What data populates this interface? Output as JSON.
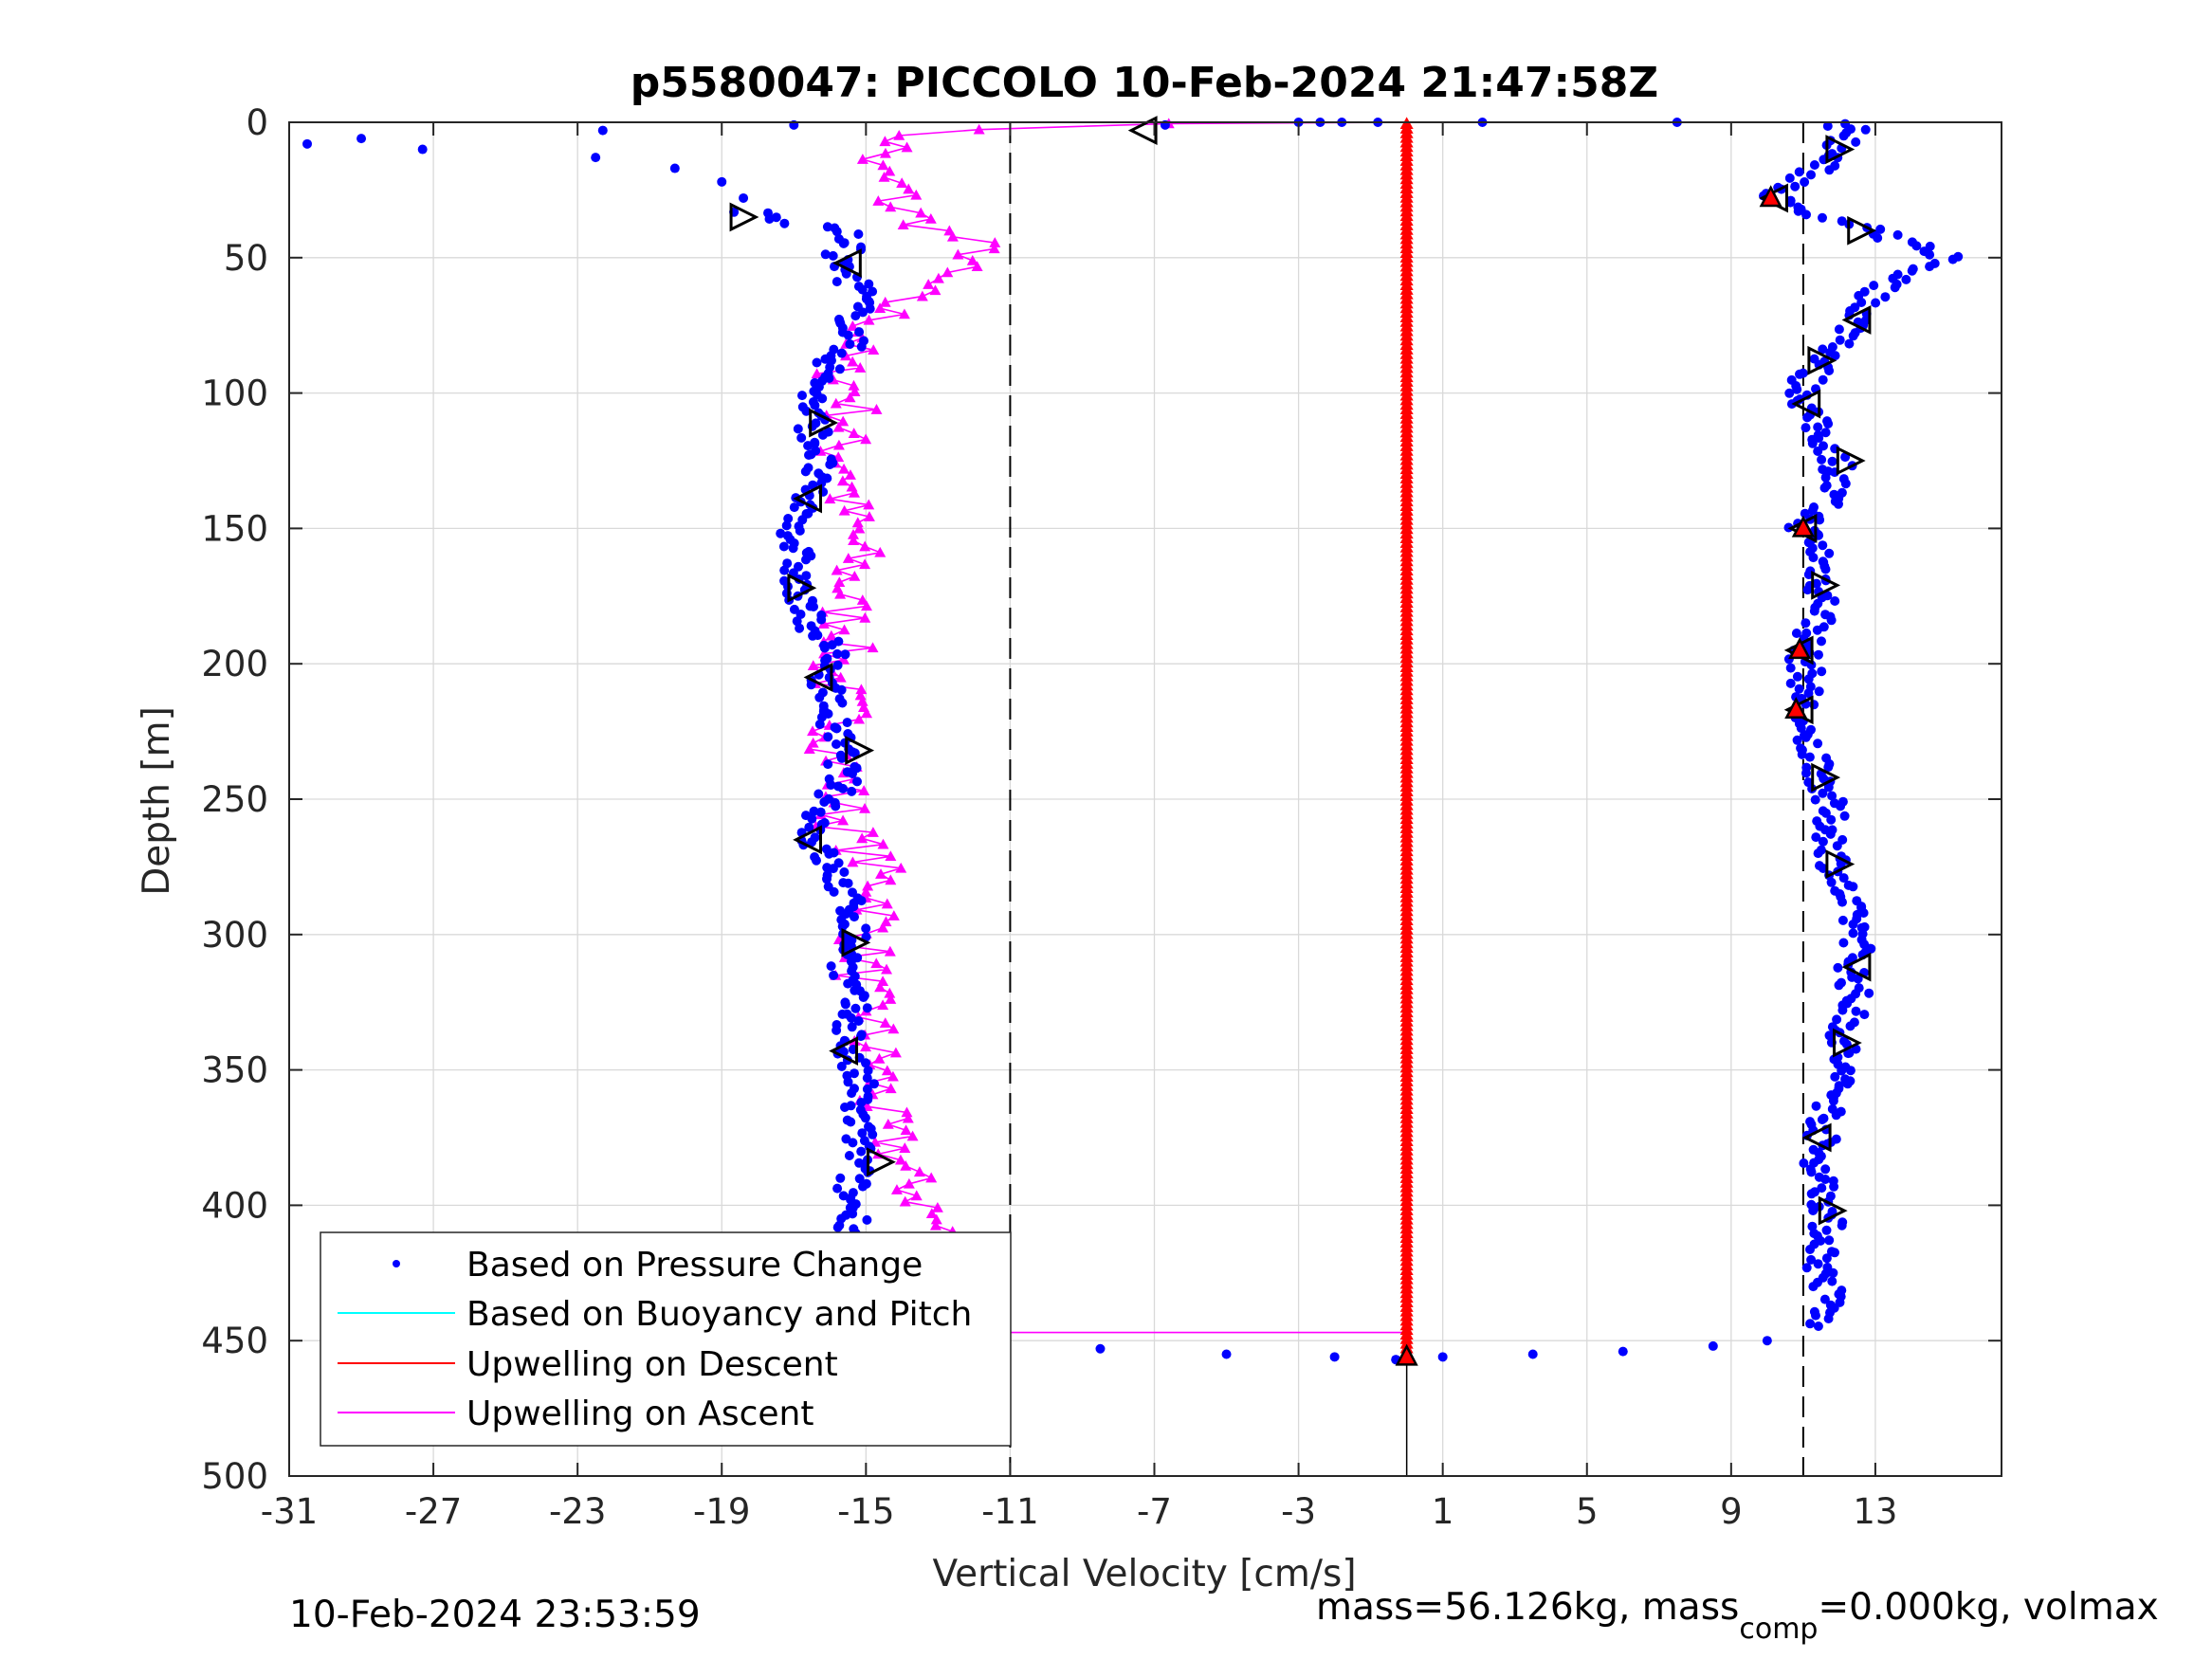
{
  "chart_data": {
    "type": "scatter",
    "title": "p5580047: PICCOLO 10-Feb-2024 21:47:58Z",
    "xlabel": "Vertical Velocity [cm/s]",
    "ylabel": "Depth [m]",
    "xlim": [
      -31,
      16.5
    ],
    "ylim": [
      0,
      500
    ],
    "y_reversed": true,
    "grid": true,
    "xticks": [
      -31,
      -27,
      -23,
      -19,
      -15,
      -11,
      -7,
      -3,
      1,
      5,
      9,
      13
    ],
    "yticks": [
      0,
      50,
      100,
      150,
      200,
      250,
      300,
      350,
      400,
      450,
      500
    ],
    "xtick_labels": [
      "-31",
      "-27",
      "-23",
      "-19",
      "-15",
      "-11",
      "-7",
      "-3",
      "1",
      "5",
      "9",
      "13"
    ],
    "ytick_labels": [
      "0",
      "50",
      "100",
      "150",
      "200",
      "250",
      "300",
      "350",
      "400",
      "450",
      "500"
    ],
    "legend_position": "bottom-left",
    "colors": {
      "pressure": "#0000ff",
      "buoyancy": "#00ffff",
      "up_descent": "#ff0000",
      "up_ascent": "#ff00ff",
      "markers": "#000000"
    },
    "reference_lines": {
      "dashed_x": [
        -11,
        11
      ],
      "solid_x": [
        0
      ]
    },
    "series": [
      {
        "name": "Based on Pressure Change",
        "style": "dots",
        "descent_profile": [
          [
            0,
            12
          ],
          [
            2,
            12.2
          ],
          [
            5,
            12.6
          ],
          [
            7,
            12.1
          ],
          [
            10,
            11.9
          ],
          [
            15,
            11.6
          ],
          [
            20,
            11.1
          ],
          [
            25,
            10.6
          ],
          [
            28,
            10.2
          ],
          [
            33,
            10.8
          ],
          [
            36,
            11.8
          ],
          [
            40,
            12.8
          ],
          [
            45,
            13.9
          ],
          [
            48,
            14.8
          ],
          [
            50,
            15.1
          ],
          [
            53,
            14.4
          ],
          [
            58,
            13.6
          ],
          [
            63,
            13
          ],
          [
            70,
            12.7
          ],
          [
            75,
            12.4
          ],
          [
            80,
            12.3
          ],
          [
            85,
            11.8
          ],
          [
            92,
            11.3
          ],
          [
            97,
            11.0
          ],
          [
            105,
            11.1
          ],
          [
            112,
            11.3
          ],
          [
            120,
            11.7
          ],
          [
            126,
            12.0
          ],
          [
            132,
            11.9
          ],
          [
            140,
            11.6
          ],
          [
            150,
            11.0
          ],
          [
            160,
            11.5
          ],
          [
            170,
            11.5
          ],
          [
            180,
            11.6
          ],
          [
            195,
            11.0
          ],
          [
            205,
            11.1
          ],
          [
            215,
            11.0
          ],
          [
            225,
            10.8
          ],
          [
            235,
            11.4
          ],
          [
            245,
            11.6
          ],
          [
            255,
            11.7
          ],
          [
            265,
            11.8
          ],
          [
            275,
            11.9
          ],
          [
            290,
            12.2
          ],
          [
            300,
            12.6
          ],
          [
            312,
            12.4
          ],
          [
            325,
            12.4
          ],
          [
            340,
            12.1
          ],
          [
            355,
            12.0
          ],
          [
            370,
            11.6
          ],
          [
            380,
            11.4
          ],
          [
            390,
            11.5
          ],
          [
            402,
            11.7
          ],
          [
            415,
            11.6
          ],
          [
            425,
            11.5
          ],
          [
            436,
            11.8
          ],
          [
            445,
            11.2
          ],
          [
            450,
            10.0
          ],
          [
            452,
            8.5
          ],
          [
            454,
            6.0
          ],
          [
            455,
            3.5
          ],
          [
            456,
            1.0
          ],
          [
            457,
            -0.3
          ]
        ],
        "ascent_profile": [
          [
            457,
            -0.3
          ],
          [
            456,
            -2
          ],
          [
            455,
            -5
          ],
          [
            453,
            -8.5
          ],
          [
            450,
            -14.6
          ],
          [
            440,
            -15.0
          ],
          [
            425,
            -15.3
          ],
          [
            415,
            -15.4
          ],
          [
            405,
            -15.3
          ],
          [
            395,
            -15.5
          ],
          [
            385,
            -15.2
          ],
          [
            375,
            -15.2
          ],
          [
            365,
            -15.3
          ],
          [
            355,
            -15.2
          ],
          [
            345,
            -15.5
          ],
          [
            335,
            -15.4
          ],
          [
            325,
            -15.4
          ],
          [
            315,
            -15.6
          ],
          [
            305,
            -15.4
          ],
          [
            295,
            -15.3
          ],
          [
            285,
            -15.6
          ],
          [
            275,
            -16.0
          ],
          [
            265,
            -16.5
          ],
          [
            255,
            -16.2
          ],
          [
            245,
            -15.7
          ],
          [
            235,
            -15.6
          ],
          [
            225,
            -15.9
          ],
          [
            215,
            -16.0
          ],
          [
            205,
            -16.1
          ],
          [
            195,
            -16.0
          ],
          [
            185,
            -16.5
          ],
          [
            175,
            -17.0
          ],
          [
            165,
            -16.9
          ],
          [
            155,
            -17.0
          ],
          [
            145,
            -16.8
          ],
          [
            135,
            -16.6
          ],
          [
            125,
            -16.3
          ],
          [
            115,
            -16.4
          ],
          [
            105,
            -16.6
          ],
          [
            98,
            -16.3
          ],
          [
            90,
            -16.0
          ],
          [
            80,
            -15.4
          ],
          [
            70,
            -15.3
          ],
          [
            62,
            -15.1
          ],
          [
            55,
            -15.6
          ],
          [
            50,
            -15.9
          ],
          [
            45,
            -15.3
          ],
          [
            40,
            -15.8
          ],
          [
            37,
            -17.2
          ],
          [
            33,
            -18.3
          ],
          [
            28,
            -18.4
          ],
          [
            22,
            -19.0
          ],
          [
            17,
            -20.3
          ],
          [
            13,
            -22.5
          ],
          [
            10,
            -27.3
          ],
          [
            8,
            -30.5
          ],
          [
            6,
            -29.0
          ],
          [
            3,
            -22.3
          ],
          [
            1,
            -17.0
          ]
        ]
      },
      {
        "name": "Based on Buoyancy and Pitch",
        "style": "line",
        "note_visible": "no visible data"
      },
      {
        "name": "Upwelling on Descent",
        "style": "line+triangles",
        "profile": [
          [
            0,
            0
          ],
          [
            100,
            0
          ],
          [
            200,
            0
          ],
          [
            300,
            0
          ],
          [
            400,
            0
          ],
          [
            457,
            0
          ]
        ]
      },
      {
        "name": "Upwelling on Ascent",
        "style": "line+triangles",
        "profile": [
          [
            0,
            0
          ],
          [
            1,
            -11.6
          ],
          [
            5,
            -13.8
          ],
          [
            10,
            -14.3
          ],
          [
            15,
            -15.0
          ],
          [
            20,
            -14.6
          ],
          [
            25,
            -14.0
          ],
          [
            30,
            -14.3
          ],
          [
            35,
            -13.6
          ],
          [
            40,
            -13.0
          ],
          [
            45,
            -12.0
          ],
          [
            50,
            -11.8
          ],
          [
            55,
            -13.0
          ],
          [
            60,
            -13.4
          ],
          [
            65,
            -14.2
          ],
          [
            70,
            -14.4
          ],
          [
            75,
            -14.8
          ],
          [
            80,
            -15.0
          ],
          [
            85,
            -15.6
          ],
          [
            90,
            -15.8
          ],
          [
            100,
            -15.3
          ],
          [
            110,
            -15.4
          ],
          [
            120,
            -15.8
          ],
          [
            130,
            -15.3
          ],
          [
            140,
            -15.6
          ],
          [
            150,
            -15.4
          ],
          [
            160,
            -15.3
          ],
          [
            170,
            -15.5
          ],
          [
            180,
            -15.6
          ],
          [
            190,
            -15.4
          ],
          [
            200,
            -15.9
          ],
          [
            210,
            -15.8
          ],
          [
            220,
            -15.6
          ],
          [
            230,
            -15.8
          ],
          [
            240,
            -15.6
          ],
          [
            250,
            -15.7
          ],
          [
            260,
            -15.6
          ],
          [
            270,
            -15.0
          ],
          [
            280,
            -14.6
          ],
          [
            290,
            -14.5
          ],
          [
            300,
            -15.0
          ],
          [
            310,
            -15.0
          ],
          [
            320,
            -15.2
          ],
          [
            330,
            -14.8
          ],
          [
            340,
            -14.9
          ],
          [
            350,
            -14.6
          ],
          [
            360,
            -14.7
          ],
          [
            370,
            -14.6
          ],
          [
            380,
            -14.1
          ],
          [
            390,
            -13.9
          ],
          [
            400,
            -13.3
          ],
          [
            410,
            -13.0
          ],
          [
            420,
            -13.0
          ],
          [
            430,
            -13.6
          ],
          [
            440,
            -13.1
          ],
          [
            445,
            -14.3
          ],
          [
            447,
            -17.5
          ],
          [
            447,
            0
          ]
        ]
      }
    ],
    "markers": {
      "descent_right_triangles": [
        [
          10,
          12
        ],
        [
          40,
          12.6
        ],
        [
          88,
          11.5
        ],
        [
          125,
          12.3
        ],
        [
          171,
          11.6
        ],
        [
          242,
          11.6
        ],
        [
          274,
          12.0
        ],
        [
          340,
          12.2
        ],
        [
          402,
          11.8
        ]
      ],
      "descent_left_triangles": [
        [
          28,
          10.2
        ],
        [
          73,
          12.5
        ],
        [
          104,
          11.1
        ],
        [
          150,
          11.0
        ],
        [
          195,
          10.9
        ],
        [
          217,
          10.9
        ],
        [
          312,
          12.5
        ],
        [
          375,
          11.4
        ]
      ],
      "ascent_right_triangles": [
        [
          35,
          -18.4
        ],
        [
          111,
          -16.2
        ],
        [
          172,
          -16.8
        ],
        [
          232,
          -15.2
        ],
        [
          303,
          -15.3
        ],
        [
          384,
          -14.6
        ],
        [
          450,
          -14.8
        ]
      ],
      "ascent_left_triangles": [
        [
          3,
          -7.3
        ],
        [
          52,
          -15.5
        ],
        [
          139,
          -16.6
        ],
        [
          205,
          -16.3
        ],
        [
          265,
          -16.6
        ],
        [
          343,
          -15.6
        ],
        [
          422,
          -15.0
        ]
      ],
      "red_highlights": [
        [
          28,
          10.1
        ],
        [
          150,
          11.0
        ],
        [
          195,
          10.9
        ],
        [
          217,
          10.8
        ],
        [
          450,
          -14.7
        ],
        [
          456,
          0
        ]
      ]
    }
  },
  "legend": {
    "items": [
      "Based on Pressure Change",
      "Based on Buoyancy and Pitch",
      "Upwelling on Descent",
      "Upwelling on Ascent"
    ]
  },
  "footer": {
    "timestamp": "10-Feb-2024 23:53:59",
    "mass_text": "mass=56.126kg, mass",
    "mass_sub": "comp",
    "mass_rest": "=0.000kg, volmax"
  }
}
